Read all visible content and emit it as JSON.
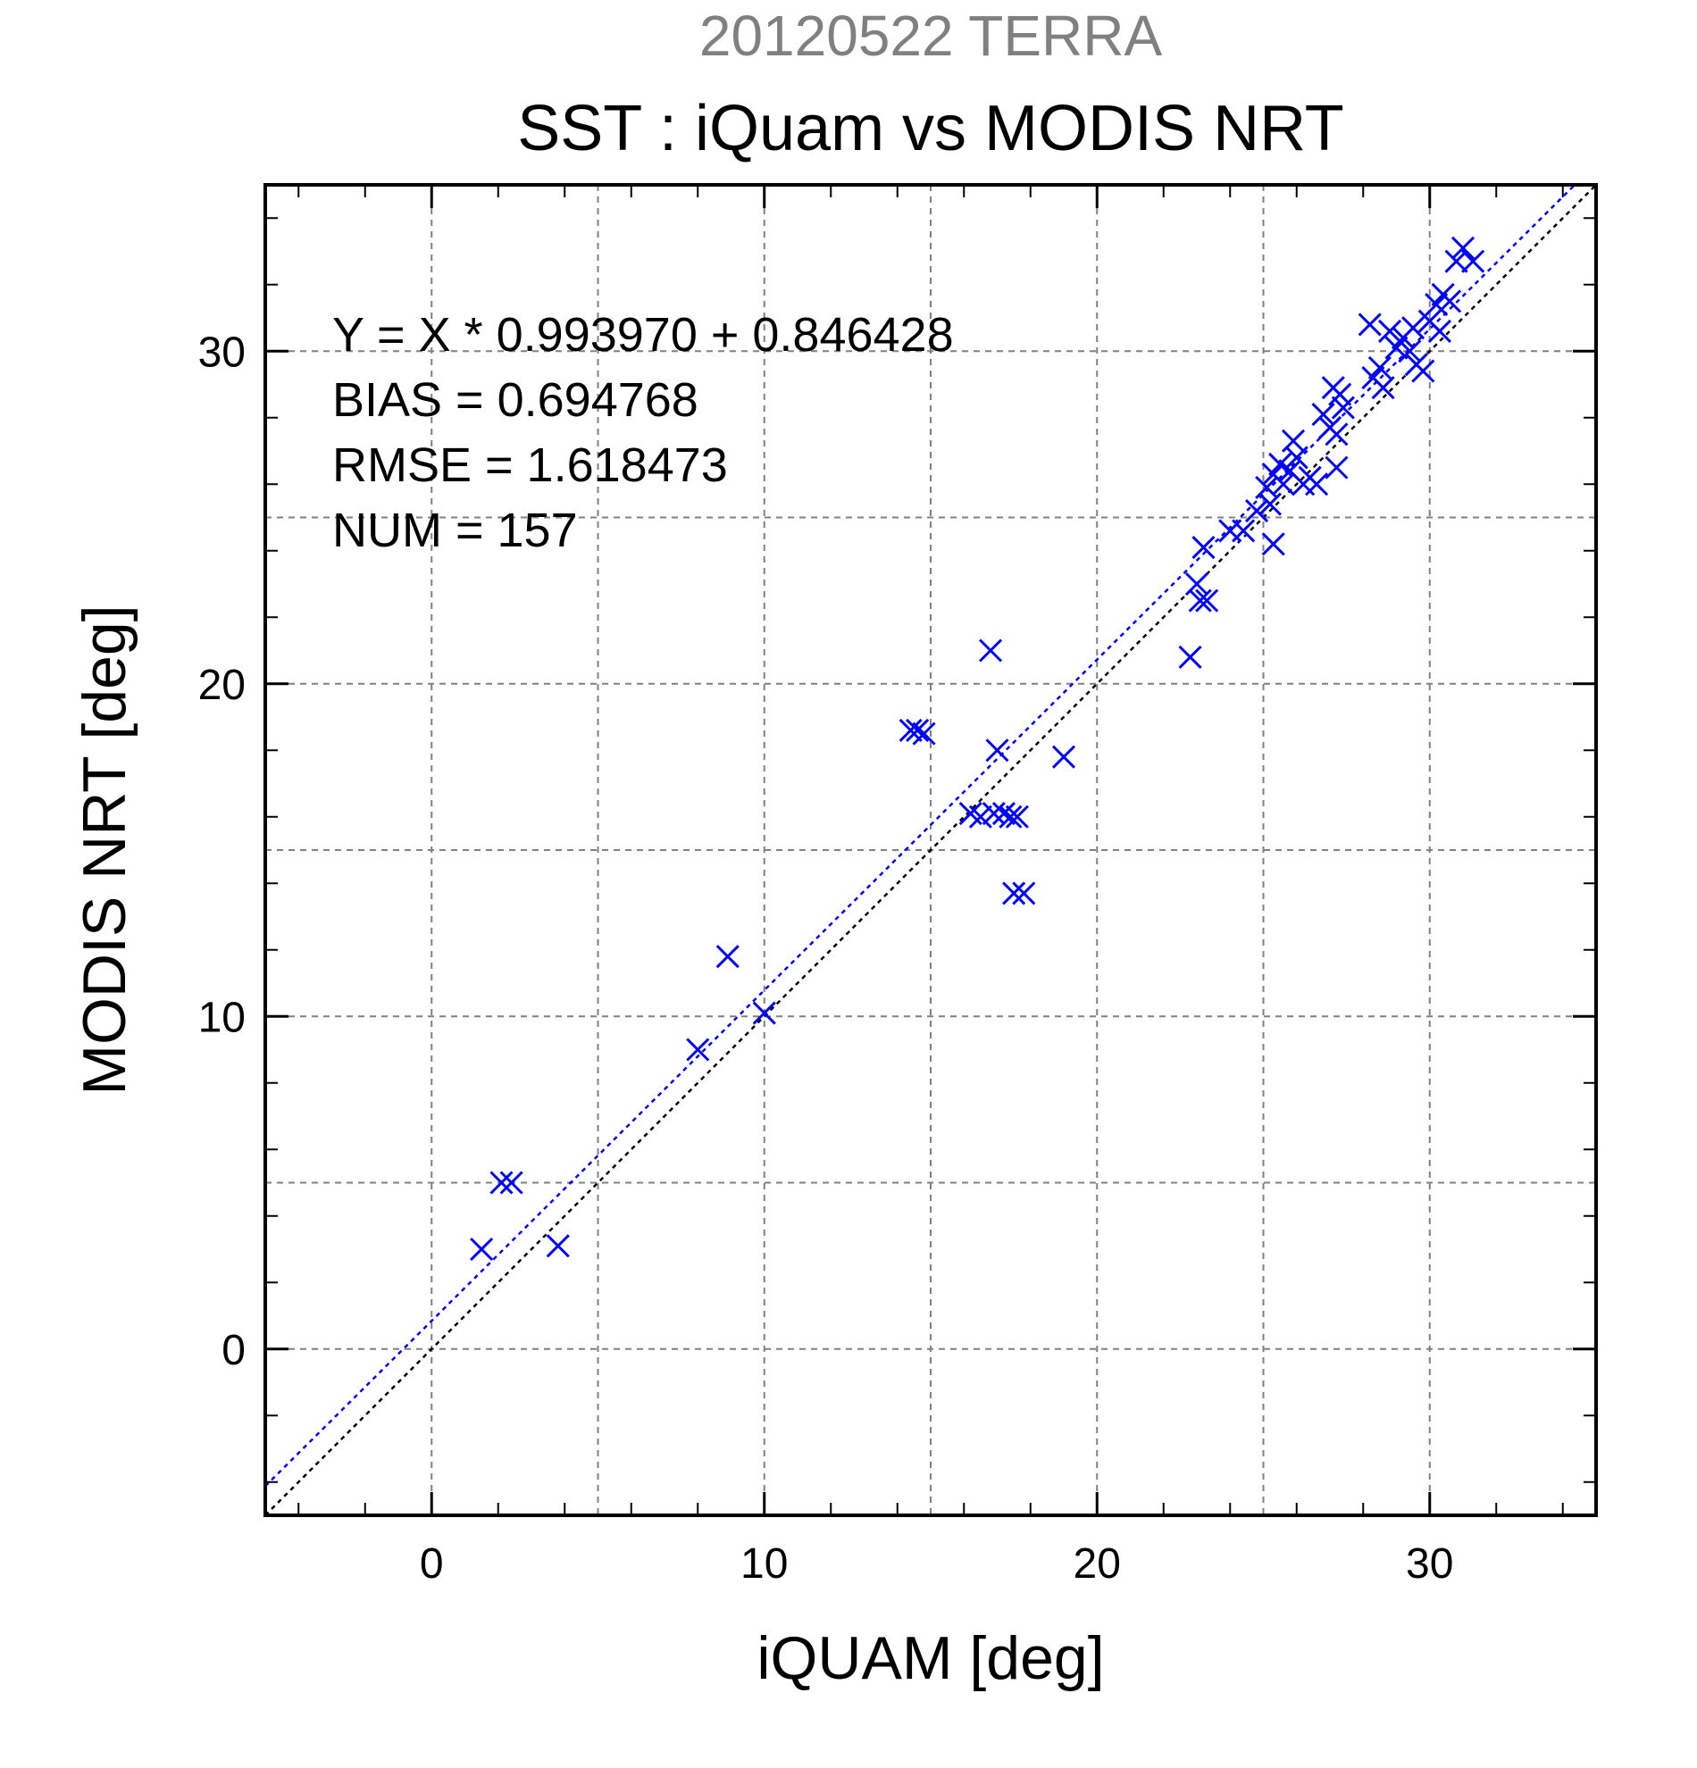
{
  "chart_data": {
    "type": "scatter",
    "title_top": "20120522 TERRA",
    "title": "SST : iQuam vs MODIS NRT",
    "xlabel": "iQUAM [deg]",
    "ylabel": "MODIS NRT [deg]",
    "xlim": [
      -5,
      35
    ],
    "ylim": [
      -5,
      35
    ],
    "major_ticks": [
      0,
      10,
      20,
      30
    ],
    "grid": true,
    "stats": [
      "Y = X * 0.993970 + 0.846428",
      "BIAS = 0.694768",
      "RMSE = 1.618473",
      "NUM = 157"
    ],
    "regression": {
      "slope": 0.99397,
      "intercept": 0.846428
    },
    "marker_color": "#0000ff",
    "points": [
      [
        1.5,
        3.0
      ],
      [
        2.1,
        5.0
      ],
      [
        2.4,
        5.0
      ],
      [
        3.8,
        3.1
      ],
      [
        8.0,
        9.0
      ],
      [
        8.9,
        11.8
      ],
      [
        10.0,
        10.1
      ],
      [
        14.4,
        18.6
      ],
      [
        14.6,
        18.6
      ],
      [
        14.8,
        18.5
      ],
      [
        16.2,
        16.1
      ],
      [
        16.5,
        16.0
      ],
      [
        16.8,
        21.0
      ],
      [
        17.0,
        18.0
      ],
      [
        16.9,
        16.1
      ],
      [
        17.2,
        16.1
      ],
      [
        17.4,
        16.0
      ],
      [
        17.6,
        16.0
      ],
      [
        17.5,
        13.7
      ],
      [
        17.8,
        13.7
      ],
      [
        19.0,
        17.8
      ],
      [
        22.8,
        20.8
      ],
      [
        23.0,
        23.0
      ],
      [
        23.1,
        22.5
      ],
      [
        23.3,
        22.5
      ],
      [
        23.2,
        24.1
      ],
      [
        24.0,
        24.6
      ],
      [
        24.4,
        24.6
      ],
      [
        24.8,
        25.2
      ],
      [
        25.2,
        25.4
      ],
      [
        25.3,
        24.2
      ],
      [
        25.1,
        25.9
      ],
      [
        25.3,
        26.3
      ],
      [
        25.5,
        26.6
      ],
      [
        25.6,
        26.0
      ],
      [
        25.8,
        26.4
      ],
      [
        26.0,
        26.8
      ],
      [
        25.9,
        27.3
      ],
      [
        26.2,
        26.0
      ],
      [
        26.4,
        26.2
      ],
      [
        26.6,
        26.0
      ],
      [
        26.8,
        28.1
      ],
      [
        27.0,
        27.7
      ],
      [
        27.1,
        28.9
      ],
      [
        27.3,
        28.7
      ],
      [
        27.2,
        27.5
      ],
      [
        27.4,
        28.3
      ],
      [
        27.2,
        26.5
      ],
      [
        28.3,
        29.2
      ],
      [
        28.5,
        29.5
      ],
      [
        28.6,
        28.9
      ],
      [
        28.2,
        30.8
      ],
      [
        28.8,
        30.6
      ],
      [
        29.0,
        30.1
      ],
      [
        29.2,
        30.4
      ],
      [
        29.4,
        30.0
      ],
      [
        29.6,
        29.6
      ],
      [
        29.5,
        30.7
      ],
      [
        29.8,
        29.4
      ],
      [
        30.0,
        30.9
      ],
      [
        30.2,
        31.4
      ],
      [
        30.4,
        31.7
      ],
      [
        30.6,
        31.5
      ],
      [
        30.3,
        30.6
      ],
      [
        30.8,
        32.7
      ],
      [
        31.0,
        33.1
      ],
      [
        31.3,
        32.7
      ]
    ]
  }
}
